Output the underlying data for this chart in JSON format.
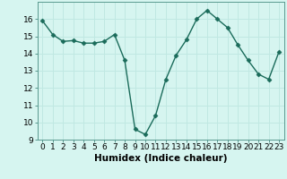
{
  "x": [
    0,
    1,
    2,
    3,
    4,
    5,
    6,
    7,
    8,
    9,
    10,
    11,
    12,
    13,
    14,
    15,
    16,
    17,
    18,
    19,
    20,
    21,
    22,
    23
  ],
  "y": [
    15.9,
    15.1,
    14.7,
    14.75,
    14.6,
    14.6,
    14.7,
    15.1,
    13.6,
    9.6,
    9.3,
    10.4,
    12.5,
    13.9,
    14.8,
    16.0,
    16.5,
    16.0,
    15.5,
    14.5,
    13.6,
    12.8,
    12.5,
    14.1
  ],
  "line_color": "#1a6b5a",
  "marker": "D",
  "marker_size": 2.5,
  "bg_color": "#d6f5f0",
  "grid_color": "#c0e8e2",
  "xlabel": "Humidex (Indice chaleur)",
  "ylim": [
    9,
    17
  ],
  "xlim": [
    -0.5,
    23.5
  ],
  "yticks": [
    9,
    10,
    11,
    12,
    13,
    14,
    15,
    16
  ],
  "xticks": [
    0,
    1,
    2,
    3,
    4,
    5,
    6,
    7,
    8,
    9,
    10,
    11,
    12,
    13,
    14,
    15,
    16,
    17,
    18,
    19,
    20,
    21,
    22,
    23
  ],
  "tick_fontsize": 6.5,
  "label_fontsize": 7.5,
  "line_width": 1.0
}
